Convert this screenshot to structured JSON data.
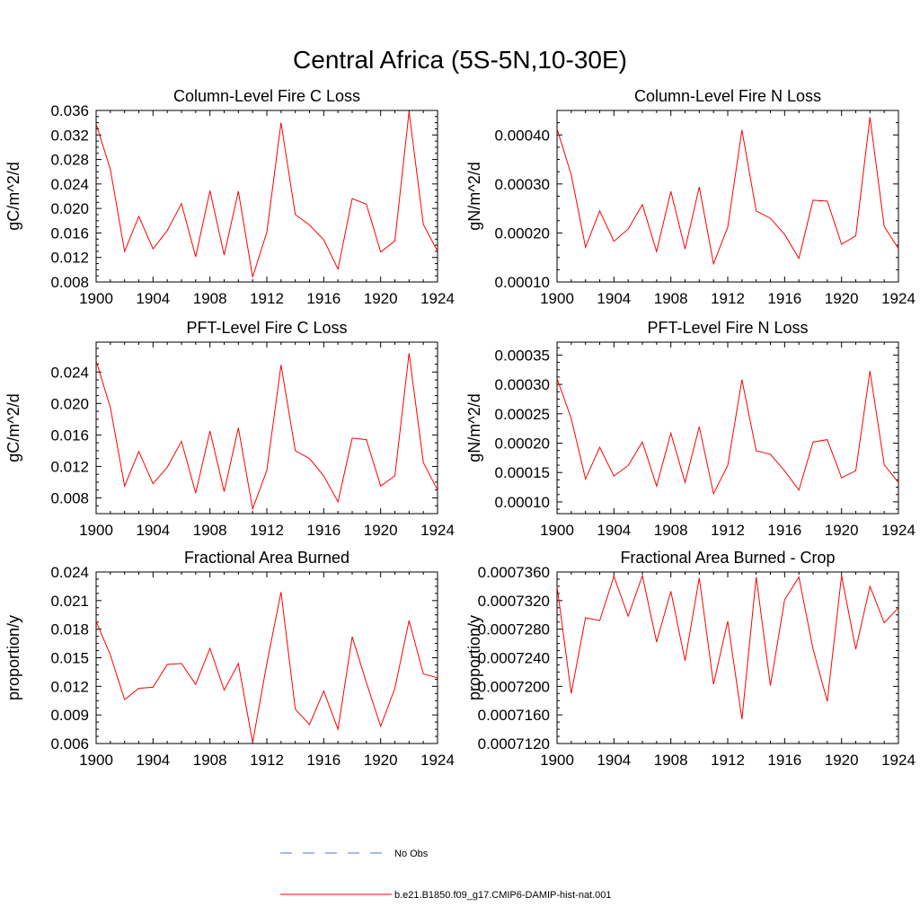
{
  "figure": {
    "title": "Central Africa (5S-5N,10-30E)",
    "line_color": "#ff0000",
    "obs_color": "#5a6fd6"
  },
  "legend": {
    "items": [
      {
        "label": "No Obs",
        "style": "dashed",
        "color": "#5a6fd6"
      },
      {
        "label": "b.e21.B1850.f09_g17.CMIP6-DAMIP-hist-nat.001",
        "style": "solid",
        "color": "#ff0000"
      }
    ]
  },
  "chart_data": [
    {
      "type": "line",
      "title": "Column-Level Fire C Loss",
      "ylabel": "gC/m^2/d",
      "xlim": [
        1900,
        1924
      ],
      "xticks": [
        "1900",
        "1904",
        "1908",
        "1912",
        "1916",
        "1920",
        "1924"
      ],
      "ylim": [
        0.008,
        0.036
      ],
      "yticks": [
        "0.008",
        "0.012",
        "0.016",
        "0.020",
        "0.024",
        "0.028",
        "0.032",
        "0.036"
      ],
      "x": [
        1900,
        1901,
        1902,
        1903,
        1904,
        1905,
        1906,
        1907,
        1908,
        1909,
        1910,
        1911,
        1912,
        1913,
        1914,
        1915,
        1916,
        1917,
        1918,
        1919,
        1920,
        1921,
        1922,
        1923,
        1924
      ],
      "series": [
        {
          "name": "b.e21.B1850.f09_g17.CMIP6-DAMIP-hist-nat.001",
          "values": [
            0.0338,
            0.0264,
            0.013,
            0.0187,
            0.0134,
            0.0164,
            0.0208,
            0.0121,
            0.0229,
            0.0124,
            0.0228,
            0.0088,
            0.0161,
            0.034,
            0.019,
            0.0173,
            0.0149,
            0.0101,
            0.0216,
            0.0207,
            0.0129,
            0.0147,
            0.0358,
            0.0174,
            0.013
          ]
        }
      ]
    },
    {
      "type": "line",
      "title": "Column-Level Fire N Loss",
      "ylabel": "gN/m^2/d",
      "xlim": [
        1900,
        1924
      ],
      "xticks": [
        "1900",
        "1904",
        "1908",
        "1912",
        "1916",
        "1920",
        "1924"
      ],
      "ylim": [
        0.0001,
        0.00045
      ],
      "yticks": [
        "0.00010",
        "0.00020",
        "0.00030",
        "0.00040"
      ],
      "x": [
        1900,
        1901,
        1902,
        1903,
        1904,
        1905,
        1906,
        1907,
        1908,
        1909,
        1910,
        1911,
        1912,
        1913,
        1914,
        1915,
        1916,
        1917,
        1918,
        1919,
        1920,
        1921,
        1922,
        1923,
        1924
      ],
      "series": [
        {
          "name": "b.e21.B1850.f09_g17.CMIP6-DAMIP-hist-nat.001",
          "values": [
            0.000412,
            0.000319,
            0.000171,
            0.000245,
            0.000183,
            0.000208,
            0.000258,
            0.000162,
            0.000285,
            0.000167,
            0.000294,
            0.000137,
            0.000212,
            0.00041,
            0.000245,
            0.00023,
            0.000197,
            0.000148,
            0.000267,
            0.000265,
            0.000177,
            0.000194,
            0.000436,
            0.000213,
            0.000168
          ]
        }
      ]
    },
    {
      "type": "line",
      "title": "PFT-Level Fire C Loss",
      "ylabel": "gC/m^2/d",
      "xlim": [
        1900,
        1924
      ],
      "xticks": [
        "1900",
        "1904",
        "1908",
        "1912",
        "1916",
        "1920",
        "1924"
      ],
      "ylim": [
        0.006,
        0.0278
      ],
      "yticks": [
        "0.008",
        "0.012",
        "0.016",
        "0.020",
        "0.024"
      ],
      "x": [
        1900,
        1901,
        1902,
        1903,
        1904,
        1905,
        1906,
        1907,
        1908,
        1909,
        1910,
        1911,
        1912,
        1913,
        1914,
        1915,
        1916,
        1917,
        1918,
        1919,
        1920,
        1921,
        1922,
        1923,
        1924
      ],
      "series": [
        {
          "name": "b.e21.B1850.f09_g17.CMIP6-DAMIP-hist-nat.001",
          "values": [
            0.0254,
            0.0195,
            0.0095,
            0.0139,
            0.0098,
            0.0119,
            0.0152,
            0.0086,
            0.0165,
            0.0088,
            0.0169,
            0.0066,
            0.0115,
            0.0249,
            0.014,
            0.013,
            0.0108,
            0.0075,
            0.0156,
            0.0154,
            0.0095,
            0.0108,
            0.0264,
            0.0125,
            0.009
          ]
        }
      ]
    },
    {
      "type": "line",
      "title": "PFT-Level Fire N Loss",
      "ylabel": "gN/m^2/d",
      "xlim": [
        1900,
        1924
      ],
      "xticks": [
        "1900",
        "1904",
        "1908",
        "1912",
        "1916",
        "1920",
        "1924"
      ],
      "ylim": [
        8e-05,
        0.000372
      ],
      "yticks": [
        "0.00010",
        "0.00015",
        "0.00020",
        "0.00025",
        "0.00030",
        "0.00035"
      ],
      "x": [
        1900,
        1901,
        1902,
        1903,
        1904,
        1905,
        1906,
        1907,
        1908,
        1909,
        1910,
        1911,
        1912,
        1913,
        1914,
        1915,
        1916,
        1917,
        1918,
        1919,
        1920,
        1921,
        1922,
        1923,
        1924
      ],
      "series": [
        {
          "name": "b.e21.B1850.f09_g17.CMIP6-DAMIP-hist-nat.001",
          "values": [
            0.00031,
            0.000242,
            0.000139,
            0.000193,
            0.000144,
            0.000162,
            0.000202,
            0.000127,
            0.000217,
            0.000133,
            0.000228,
            0.000114,
            0.000162,
            0.000308,
            0.000187,
            0.000181,
            0.000153,
            0.00012,
            0.000202,
            0.000206,
            0.000141,
            0.000153,
            0.000323,
            0.000163,
            0.000133
          ]
        }
      ]
    },
    {
      "type": "line",
      "title": "Fractional Area Burned",
      "ylabel": "proportion/y",
      "xlim": [
        1900,
        1924
      ],
      "xticks": [
        "1900",
        "1904",
        "1908",
        "1912",
        "1916",
        "1920",
        "1924"
      ],
      "ylim": [
        0.006,
        0.024
      ],
      "yticks": [
        "0.006",
        "0.009",
        "0.012",
        "0.015",
        "0.018",
        "0.021",
        "0.024"
      ],
      "x": [
        1900,
        1901,
        1902,
        1903,
        1904,
        1905,
        1906,
        1907,
        1908,
        1909,
        1910,
        1911,
        1912,
        1913,
        1914,
        1915,
        1916,
        1917,
        1918,
        1919,
        1920,
        1921,
        1922,
        1923,
        1924
      ],
      "series": [
        {
          "name": "b.e21.B1850.f09_g17.CMIP6-DAMIP-hist-nat.001",
          "values": [
            0.0188,
            0.0153,
            0.0106,
            0.0118,
            0.0119,
            0.0143,
            0.0144,
            0.0122,
            0.016,
            0.0116,
            0.0144,
            0.0061,
            0.0144,
            0.0219,
            0.0096,
            0.008,
            0.0115,
            0.0075,
            0.0172,
            0.0124,
            0.0078,
            0.0118,
            0.0189,
            0.0133,
            0.0129
          ]
        }
      ]
    },
    {
      "type": "line",
      "title": "Fractional Area Burned - Crop",
      "ylabel": "proportion/y",
      "xlim": [
        1900,
        1924
      ],
      "xticks": [
        "1900",
        "1904",
        "1908",
        "1912",
        "1916",
        "1920",
        "1924"
      ],
      "ylim": [
        0.000712,
        0.000736
      ],
      "yticks": [
        "0.0007120",
        "0.0007160",
        "0.0007200",
        "0.0007240",
        "0.0007280",
        "0.0007320",
        "0.0007360"
      ],
      "x": [
        1900,
        1901,
        1902,
        1903,
        1904,
        1905,
        1906,
        1907,
        1908,
        1909,
        1910,
        1911,
        1912,
        1913,
        1914,
        1915,
        1916,
        1917,
        1918,
        1919,
        1920,
        1921,
        1922,
        1923,
        1924
      ],
      "series": [
        {
          "name": "b.e21.B1850.f09_g17.CMIP6-DAMIP-hist-nat.001",
          "values": [
            0.000734,
            0.000719,
            0.0007296,
            0.0007292,
            0.0007354,
            0.0007298,
            0.0007355,
            0.0007262,
            0.0007333,
            0.0007236,
            0.0007352,
            0.0007203,
            0.0007291,
            0.0007154,
            0.0007353,
            0.0007201,
            0.0007321,
            0.0007353,
            0.0007252,
            0.0007179,
            0.0007355,
            0.0007252,
            0.000734,
            0.0007289,
            0.000731
          ]
        }
      ]
    }
  ]
}
